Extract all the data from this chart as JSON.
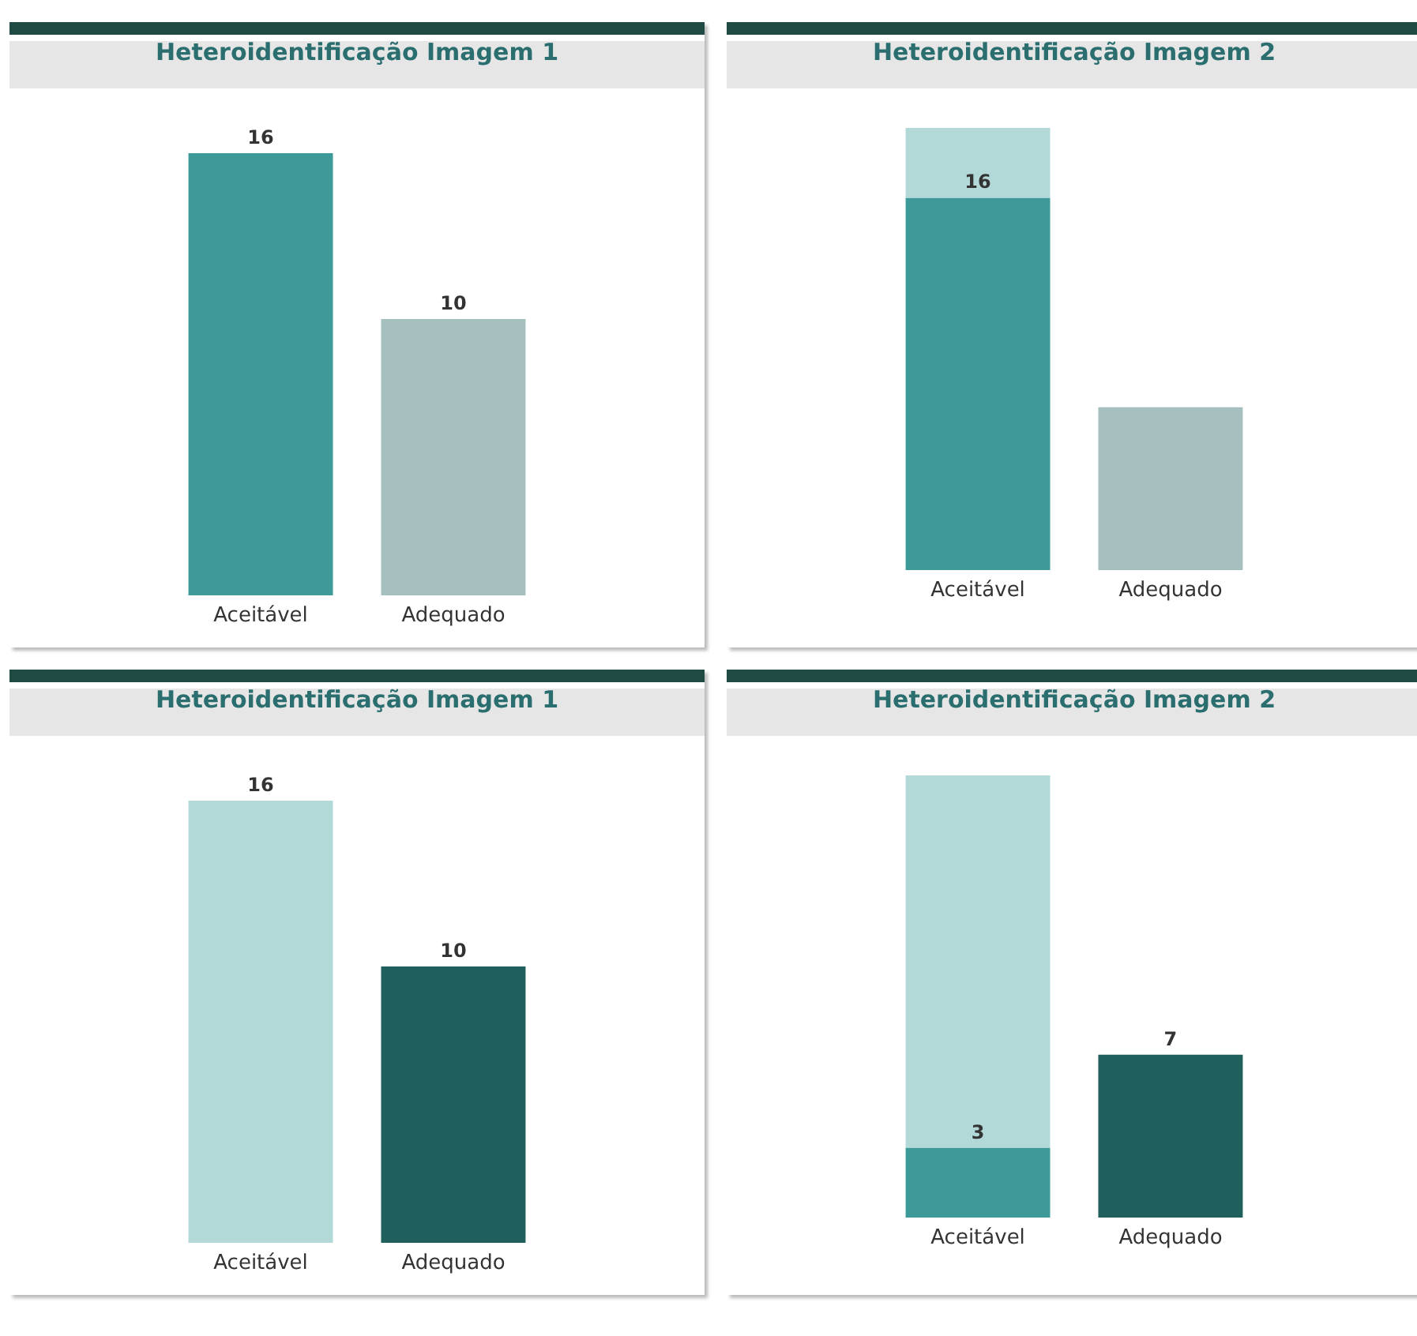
{
  "chart_data": [
    {
      "type": "bar",
      "title": "Heteroidentificação Imagem 1",
      "categories": [
        "Aceitável",
        "Adequado"
      ],
      "values": [
        16,
        10
      ],
      "colors": [
        "#3d9a98",
        "#a6bfbf"
      ],
      "data_labels": true
    },
    {
      "type": "bar",
      "title": "Heteroidentificação Imagem 2",
      "categories": [
        "Aceitável",
        "Adequado"
      ],
      "stacked": true,
      "series": [
        {
          "values": [
            16,
            7
          ],
          "colors": [
            "#3d9a98",
            "#a6bfbf"
          ],
          "value_labels": [
            "16",
            null
          ]
        },
        {
          "values": [
            3,
            null
          ],
          "color": "#b3d8d8"
        }
      ]
    },
    {
      "type": "bar",
      "title": "Heteroidentificação Imagem 1",
      "categories": [
        "Aceitável",
        "Adequado"
      ],
      "values": [
        16,
        10
      ],
      "colors": [
        "#b3d8d8",
        "#1f5f5c"
      ],
      "data_labels": true
    },
    {
      "type": "bar",
      "title": "Heteroidentificação Imagem 2",
      "categories": [
        "Aceitável",
        "Adequado"
      ],
      "stacked": true,
      "series": [
        {
          "values": [
            3,
            7
          ],
          "colors": [
            "#3d9a98",
            "#1f5f5c"
          ],
          "value_labels": [
            "3",
            "7"
          ]
        },
        {
          "values": [
            16,
            null
          ],
          "color": "#b3d8d8"
        }
      ]
    }
  ]
}
